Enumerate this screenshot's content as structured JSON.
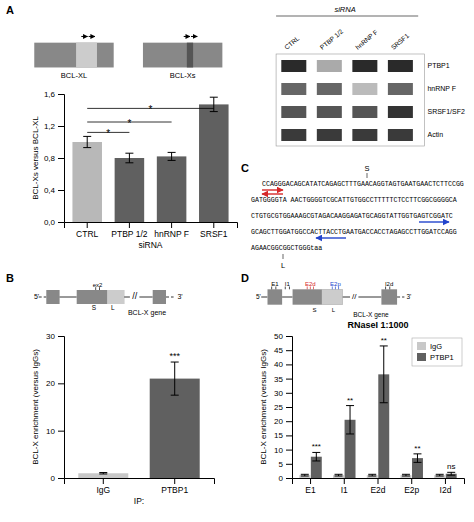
{
  "chart_data": [
    {
      "type": "bar",
      "categories": [
        "CTRL",
        "PTBP 1/2",
        "hnRNP F",
        "SRSF1"
      ],
      "values": [
        1.0,
        0.8,
        0.82,
        1.47
      ],
      "errors": [
        0.07,
        0.06,
        0.05,
        0.09
      ],
      "colors": [
        "#b8b8b8",
        "#606060",
        "#606060",
        "#606060"
      ],
      "xlabel": "siRNA",
      "ylabel": "BCL-Xs versus BCL-XL",
      "ylim": [
        0.0,
        1.6
      ],
      "yticks": [
        {
          "value": 0.0,
          "label": "0,0"
        },
        {
          "value": 0.4,
          "label": "0,4"
        },
        {
          "value": 0.8,
          "label": "0,8"
        },
        {
          "value": 1.2,
          "label": "1,2"
        },
        {
          "value": 1.6,
          "label": "1,6"
        }
      ],
      "significance": [
        {
          "from": "CTRL",
          "to": "PTBP 1/2",
          "y": 1.12,
          "label": "*"
        },
        {
          "from": "CTRL",
          "to": "hnRNP F",
          "y": 1.25,
          "label": "*"
        },
        {
          "from": "CTRL",
          "to": "SRSF1",
          "y": 1.42,
          "label": "*"
        }
      ],
      "annotations": [
        "A",
        "BCL-XL",
        "BCL-Xs",
        "siRNA",
        "CTRL",
        "PTBP 1/2",
        "hnRNP F",
        "SRSF1",
        "PTBP1",
        "hnRNP F",
        "SRSF1/SF2",
        "Actin",
        "C",
        "CCAGGGACAGCATATCAGAGCTTTGAACAGGTAGTGAATGAACTCTTCCGG",
        "GATGGGGTA AACTGGGGTCGCATTGTGGCCTTTTTCTCCTTCGGCGGGGCA",
        "CTGTGCGTGGAAAGCGTAGACAAGGAGATGCAGGTATTGGTGAGTCGGATC",
        "GCAGCTTGGATGGCCACTTACCTGAATGACCACCTAGAGCCTTGGATCCAGG",
        "AGAACGGCGGCTGGGtaa",
        "S",
        "L"
      ]
    },
    {
      "type": "bar",
      "categories": [
        "IgG",
        "PTBP1"
      ],
      "values": [
        1.0,
        21.0
      ],
      "errors": [
        0.15,
        3.5
      ],
      "colors": [
        "#c8c8c8",
        "#606060"
      ],
      "xlabel": "IP:",
      "ylabel": "BCL-X enrichment (versus IgGs)",
      "ylim": [
        0,
        30
      ],
      "yticks": [
        0,
        10,
        20,
        30
      ],
      "significance": [
        null,
        "***"
      ],
      "annotations": [
        "B",
        "5'",
        "ex2",
        "S",
        "L",
        "//",
        "3'",
        "BCL-X gene"
      ]
    },
    {
      "type": "bar",
      "title": "RNaseI 1:1000",
      "categories": [
        "E1",
        "I1",
        "E2d",
        "E2p",
        "I2d"
      ],
      "series": [
        {
          "name": "IgG",
          "color": "#c8c8c8",
          "values": [
            1.0,
            1.0,
            1.0,
            1.0,
            1.0
          ],
          "errors": [
            0.3,
            0.3,
            0.3,
            0.3,
            0.3
          ]
        },
        {
          "name": "PTBP1",
          "color": "#606060",
          "values": [
            7.5,
            20.5,
            36.5,
            7.0,
            1.5
          ],
          "errors": [
            1.5,
            5.0,
            10.0,
            1.5,
            0.5
          ],
          "significance": [
            "***",
            "**",
            "**",
            "**",
            "ns"
          ]
        }
      ],
      "ylabel": "BCL-X enrichment (versus IgGs)",
      "ylim": [
        0,
        50
      ],
      "yticks": [
        0,
        5,
        10,
        15,
        20,
        25,
        30,
        35,
        40,
        45,
        50
      ],
      "legend": "upper right",
      "annotations": [
        "D",
        "5'",
        "E1",
        "I1",
        "E2d",
        "E2p",
        "S",
        "L",
        "//",
        "I2d",
        "3'",
        "BCL-X gene"
      ]
    }
  ]
}
